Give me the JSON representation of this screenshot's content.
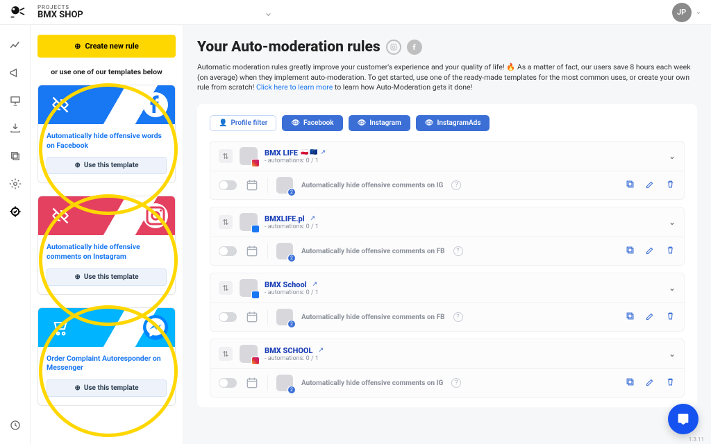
{
  "header": {
    "projects_label": "PROJECTS",
    "project_name": "BMX SHOP",
    "avatar": "JP"
  },
  "sidebar": {
    "create_btn": "Create new rule",
    "or_text": "or use one of our templates below",
    "use_template": "Use this template",
    "templates": [
      {
        "title": "Automatically hide offensive words on Facebook"
      },
      {
        "title": "Automatically hide offensive comments on Instagram"
      },
      {
        "title": "Order Complaint Autoresponder on Messenger"
      }
    ]
  },
  "main": {
    "title": "Your Auto-moderation rules",
    "intro_pre": "Automatic moderation rules greatly improve your customer's experience and your quality of life! 🔥 As a matter of fact, our users save 8 hours each week (on average) when they implement auto-moderation. To get started, use one of the ready-made templates for the most common uses, or create your own rule from scratch! ",
    "intro_link": "Click here to learn more",
    "intro_post": " to learn how Auto-Moderation gets it done!",
    "filters": {
      "profile": "Profile filter",
      "fb": "Facebook",
      "ig": "Instagram",
      "iga": "InstagramAds"
    },
    "groups": [
      {
        "name": "BMX LIFE",
        "flags": "🇵🇱 🇪🇺",
        "sub": "- automations: 0 / 1",
        "rule": "Automatically hide offensive comments on IG",
        "badge": "ig"
      },
      {
        "name": "BMXLIFE.pl",
        "flags": "",
        "sub": "- automations: 0 / 1",
        "rule": "Automatically hide offensive comments on FB",
        "badge": "fb"
      },
      {
        "name": "BMX School",
        "flags": "",
        "sub": "- automations: 0 / 1",
        "rule": "Automatically hide offensive comments on FB",
        "badge": "fb"
      },
      {
        "name": "BMX SCHOOL",
        "flags": "",
        "sub": "- automations: 0 / 1",
        "rule": "Automatically hide offensive comments on IG",
        "badge": "ig"
      }
    ]
  },
  "version": "1.3.11",
  "colors": {
    "yellow": "#ffd700",
    "primary": "#3b6fd6"
  }
}
